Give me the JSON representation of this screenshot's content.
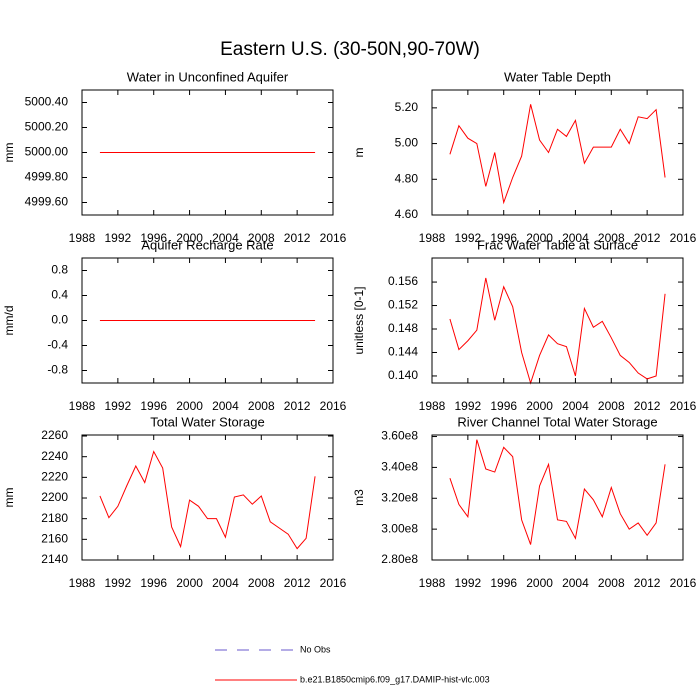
{
  "title": "Eastern U.S. (30-50N,90-70W)",
  "legend": [
    {
      "name": "No Obs",
      "color": "#6a5acd",
      "dash": true
    },
    {
      "name": "b.e21.B1850cmip6.f09_g17.DAMIP-hist-vlc.003",
      "color": "#ff0000",
      "dash": false
    }
  ],
  "chart_data": [
    {
      "type": "line",
      "title": "Water in Unconfined Aquifer",
      "ylabel": "mm",
      "color": "#ff0000",
      "x": [
        1990,
        1991,
        1992,
        1993,
        1994,
        1995,
        1996,
        1997,
        1998,
        1999,
        2000,
        2001,
        2002,
        2003,
        2004,
        2005,
        2006,
        2007,
        2008,
        2009,
        2010,
        2011,
        2012,
        2013,
        2014
      ],
      "values": [
        5000,
        5000,
        5000,
        5000,
        5000,
        5000,
        5000,
        5000,
        5000,
        5000,
        5000,
        5000,
        5000,
        5000,
        5000,
        5000,
        5000,
        5000,
        5000,
        5000,
        5000,
        5000,
        5000,
        5000,
        5000
      ],
      "xlim": [
        1988,
        2016
      ],
      "xticks": [
        1988,
        1992,
        1996,
        2000,
        2004,
        2008,
        2012,
        2016
      ],
      "ylim": [
        4999.5,
        5000.5
      ],
      "yticks": [
        {
          "value": 4999.6,
          "label": "4999.60"
        },
        {
          "value": 4999.8,
          "label": "4999.80"
        },
        {
          "value": 5000,
          "label": "5000.00"
        },
        {
          "value": 5000.2,
          "label": "5000.20"
        },
        {
          "value": 5000.4,
          "label": "5000.40"
        }
      ]
    },
    {
      "type": "line",
      "title": "Water Table Depth",
      "ylabel": "m",
      "color": "#ff0000",
      "x": [
        1990,
        1991,
        1992,
        1993,
        1994,
        1995,
        1996,
        1997,
        1998,
        1999,
        2000,
        2001,
        2002,
        2003,
        2004,
        2005,
        2006,
        2007,
        2008,
        2009,
        2010,
        2011,
        2012,
        2013,
        2014
      ],
      "values": [
        4.94,
        5.1,
        5.03,
        5.0,
        4.76,
        4.95,
        4.67,
        4.81,
        4.93,
        5.22,
        5.02,
        4.95,
        5.08,
        5.04,
        5.13,
        4.89,
        4.98,
        4.98,
        4.98,
        5.08,
        5.0,
        5.15,
        5.14,
        5.19,
        4.81
      ],
      "xlim": [
        1988,
        2016
      ],
      "xticks": [
        1988,
        1992,
        1996,
        2000,
        2004,
        2008,
        2012,
        2016
      ],
      "ylim": [
        4.6,
        5.3
      ],
      "yticks": [
        {
          "value": 4.6,
          "label": "4.60"
        },
        {
          "value": 4.8,
          "label": "4.80"
        },
        {
          "value": 5,
          "label": "5.00"
        },
        {
          "value": 5.2,
          "label": "5.20"
        }
      ]
    },
    {
      "type": "line",
      "title": "Aquifer Recharge Rate",
      "ylabel": "mm/d",
      "color": "#ff0000",
      "x": [
        1990,
        1991,
        1992,
        1993,
        1994,
        1995,
        1996,
        1997,
        1998,
        1999,
        2000,
        2001,
        2002,
        2003,
        2004,
        2005,
        2006,
        2007,
        2008,
        2009,
        2010,
        2011,
        2012,
        2013,
        2014
      ],
      "values": [
        0,
        0,
        0,
        0,
        0,
        0,
        0,
        0,
        0,
        0,
        0,
        0,
        0,
        0,
        0,
        0,
        0,
        0,
        0,
        0,
        0,
        0,
        0,
        0,
        0
      ],
      "xlim": [
        1988,
        2016
      ],
      "xticks": [
        1988,
        1992,
        1996,
        2000,
        2004,
        2008,
        2012,
        2016
      ],
      "ylim": [
        -1,
        1
      ],
      "yticks": [
        -0.8,
        -0.4,
        {
          "value": 0,
          "label": "0.0"
        },
        0.4,
        0.8
      ]
    },
    {
      "type": "line",
      "title": "Frac Water Table at Surface",
      "ylabel": "unitless [0-1]",
      "color": "#ff0000",
      "x": [
        1990,
        1991,
        1992,
        1993,
        1994,
        1995,
        1996,
        1997,
        1998,
        1999,
        2000,
        2001,
        2002,
        2003,
        2004,
        2005,
        2006,
        2007,
        2008,
        2009,
        2010,
        2011,
        2012,
        2013,
        2014
      ],
      "values": [
        0.1497,
        0.1445,
        0.146,
        0.1478,
        0.1567,
        0.1495,
        0.1552,
        0.1518,
        0.144,
        0.1388,
        0.1435,
        0.147,
        0.1455,
        0.145,
        0.14,
        0.1515,
        0.1483,
        0.1493,
        0.1465,
        0.1435,
        0.1423,
        0.1405,
        0.1395,
        0.14,
        0.154
      ],
      "xlim": [
        1988,
        2016
      ],
      "xticks": [
        1988,
        1992,
        1996,
        2000,
        2004,
        2008,
        2012,
        2016
      ],
      "ylim": [
        0.1388,
        0.1601
      ],
      "yticks": [
        {
          "value": 0.14,
          "label": "0.140"
        },
        0.144,
        0.148,
        0.152,
        0.156
      ]
    },
    {
      "type": "line",
      "title": "Total Water Storage",
      "ylabel": "mm",
      "color": "#ff0000",
      "x": [
        1990,
        1991,
        1992,
        1993,
        1994,
        1995,
        1996,
        1997,
        1998,
        1999,
        2000,
        2001,
        2002,
        2003,
        2004,
        2005,
        2006,
        2007,
        2008,
        2009,
        2010,
        2011,
        2012,
        2013,
        2014
      ],
      "values": [
        2202,
        2181,
        2192,
        2212,
        2231,
        2215,
        2245,
        2229,
        2172,
        2153,
        2198,
        2192,
        2180,
        2180,
        2162,
        2201,
        2203,
        2194,
        2202,
        2177,
        2171,
        2165,
        2151,
        2161,
        2221
      ],
      "xlim": [
        1988,
        2016
      ],
      "xticks": [
        1988,
        1992,
        1996,
        2000,
        2004,
        2008,
        2012,
        2016
      ],
      "ylim": [
        2140,
        2261
      ],
      "yticks": [
        2140,
        2160,
        2180,
        2200,
        2220,
        2240,
        2260
      ]
    },
    {
      "type": "line",
      "title": "River Channel Total Water Storage",
      "ylabel": "m3",
      "color": "#ff0000",
      "x": [
        1990,
        1991,
        1992,
        1993,
        1994,
        1995,
        1996,
        1997,
        1998,
        1999,
        2000,
        2001,
        2002,
        2003,
        2004,
        2005,
        2006,
        2007,
        2008,
        2009,
        2010,
        2011,
        2012,
        2013,
        2014
      ],
      "values": [
        333000000,
        316000000,
        308000000,
        358000000,
        339000000,
        337000000,
        353000000,
        347000000,
        306000000,
        290000000,
        328000000,
        342000000,
        306000000,
        305000000,
        294000000,
        326000000,
        319000000,
        308000000,
        327000000,
        310000000,
        300000000,
        304000000,
        296000000,
        304000000,
        342000000
      ],
      "xlim": [
        1988,
        2016
      ],
      "xticks": [
        1988,
        1992,
        1996,
        2000,
        2004,
        2008,
        2012,
        2016
      ],
      "ylim": [
        280000000,
        361000000
      ],
      "yticks": [
        {
          "value": 280000000,
          "label": "2.80e8"
        },
        {
          "value": 300000000,
          "label": "3.00e8"
        },
        {
          "value": 320000000,
          "label": "3.20e8"
        },
        {
          "value": 340000000,
          "label": "3.40e8"
        },
        {
          "value": 360000000,
          "label": "3.60e8"
        }
      ]
    }
  ]
}
